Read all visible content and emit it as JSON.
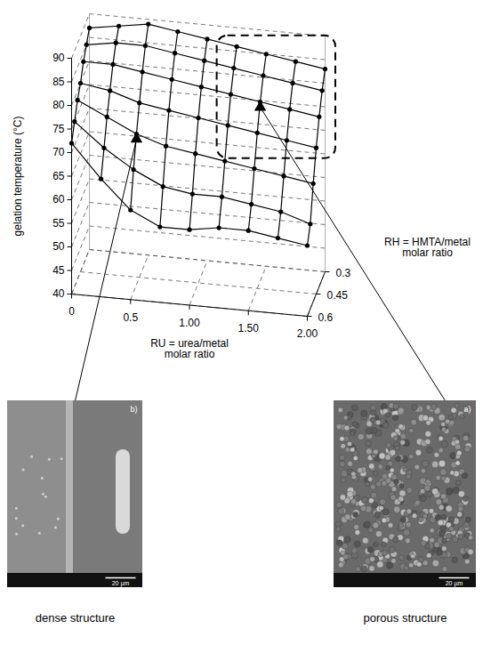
{
  "chart_data": {
    "type": "surface",
    "xlabel": "RU = urea/metal molar ratio",
    "ylabel": "RH = HMTA/metal molar ratio",
    "zlabel": "gelation temperature (°C)",
    "x": [
      0,
      0.25,
      0.5,
      0.75,
      1,
      1.25,
      1.5,
      1.75,
      2
    ],
    "y": [
      0.3,
      0.35,
      0.4,
      0.45,
      0.5,
      0.55,
      0.6
    ],
    "values": [
      [
        87,
        88,
        89,
        88,
        87,
        86,
        85,
        84,
        83
      ],
      [
        85,
        86,
        86,
        85,
        84,
        83,
        82,
        81,
        80
      ],
      [
        83,
        83,
        82,
        81,
        80,
        79,
        78,
        77,
        76
      ],
      [
        80,
        79,
        77,
        76,
        75,
        74,
        73,
        72,
        71
      ],
      [
        78,
        75,
        72,
        70,
        69,
        68,
        67,
        66,
        65
      ],
      [
        75,
        70,
        66,
        63,
        62,
        62,
        61,
        60,
        58
      ],
      [
        72,
        65,
        59,
        56,
        56,
        57,
        57,
        56,
        55
      ]
    ],
    "xlim": [
      0,
      2
    ],
    "xticks": [
      0,
      0.5,
      {
        "value": 1,
        "label": "1.00"
      },
      {
        "value": 1.5,
        "label": "1.50"
      },
      {
        "value": 2,
        "label": "2.00"
      }
    ],
    "ylim": [
      0.3,
      0.6
    ],
    "yticks": [
      0.3,
      0.45,
      0.6
    ],
    "zlim": [
      40,
      90
    ],
    "zticks": [
      40,
      45,
      50,
      55,
      60,
      65,
      70,
      75,
      80,
      85,
      90
    ],
    "grid": true,
    "marker": "circle",
    "color": "#000000",
    "insets": [
      {
        "label": "b)",
        "scale_bar": "20 µm",
        "caption": "dense structure"
      },
      {
        "label": "a)",
        "scale_bar": "20 µm",
        "caption": "porous structure"
      }
    ]
  }
}
